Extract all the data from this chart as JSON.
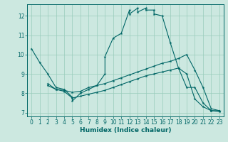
{
  "title": "",
  "xlabel": "Humidex (Indice chaleur)",
  "bg_color": "#cce8e0",
  "line_color": "#006666",
  "grid_color": "#99ccbb",
  "xlim": [
    -0.5,
    23.5
  ],
  "ylim": [
    6.8,
    12.6
  ],
  "yticks": [
    7,
    8,
    9,
    10,
    11,
    12
  ],
  "xticks": [
    0,
    1,
    2,
    3,
    4,
    5,
    6,
    7,
    8,
    9,
    10,
    11,
    12,
    13,
    14,
    15,
    16,
    17,
    18,
    19,
    20,
    21,
    22,
    23
  ],
  "series": {
    "line1_x": [
      0,
      1,
      2,
      3,
      4,
      5,
      5,
      6,
      7,
      8,
      9,
      9,
      10,
      11,
      12,
      12,
      13,
      13,
      14,
      14,
      15,
      15,
      16,
      17,
      18,
      19,
      20,
      21,
      22,
      23
    ],
    "line1_y": [
      10.3,
      9.6,
      9.0,
      8.3,
      8.2,
      7.8,
      7.6,
      8.0,
      8.2,
      8.4,
      9.0,
      9.9,
      10.85,
      11.1,
      12.3,
      12.1,
      12.4,
      12.2,
      12.4,
      12.3,
      12.3,
      12.1,
      12.0,
      10.6,
      9.3,
      8.3,
      8.3,
      7.5,
      7.1,
      7.1
    ],
    "line2_x": [
      2,
      3,
      4,
      5,
      6,
      7,
      8,
      9,
      10,
      11,
      12,
      13,
      14,
      15,
      16,
      17,
      18,
      19,
      20,
      21,
      22,
      23
    ],
    "line2_y": [
      8.5,
      8.2,
      8.15,
      8.05,
      8.1,
      8.3,
      8.4,
      8.5,
      8.65,
      8.8,
      8.95,
      9.1,
      9.25,
      9.4,
      9.55,
      9.65,
      9.8,
      10.0,
      9.2,
      8.3,
      7.2,
      7.1
    ],
    "line3_x": [
      2,
      3,
      4,
      5,
      6,
      7,
      8,
      9,
      10,
      11,
      12,
      13,
      14,
      15,
      16,
      17,
      18,
      19,
      20,
      21,
      22,
      23
    ],
    "line3_y": [
      8.4,
      8.2,
      8.1,
      7.75,
      7.85,
      7.95,
      8.05,
      8.15,
      8.3,
      8.45,
      8.6,
      8.75,
      8.9,
      9.0,
      9.1,
      9.2,
      9.3,
      9.0,
      7.7,
      7.3,
      7.1,
      7.05
    ]
  },
  "marker": "*",
  "markersize": 3,
  "linewidth": 0.8,
  "tick_fontsize": 5.5,
  "xlabel_fontsize": 6.5
}
